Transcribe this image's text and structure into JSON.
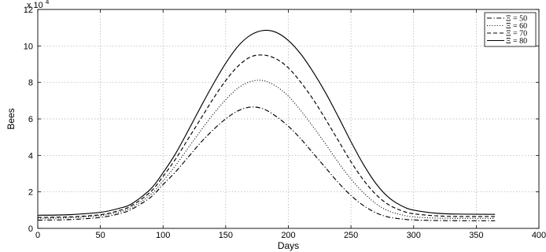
{
  "chart_data": {
    "type": "line",
    "title": "",
    "xlabel": "Days",
    "ylabel": "Bees",
    "y_multiplier": "x 10^4",
    "y_exponent_base": "x 10",
    "y_exponent": "4",
    "xlim": [
      0,
      400
    ],
    "ylim": [
      0,
      12
    ],
    "xticks": [
      0,
      50,
      100,
      150,
      200,
      250,
      300,
      350,
      400
    ],
    "yticks": [
      0,
      2,
      4,
      6,
      8,
      10,
      12
    ],
    "grid": true,
    "legend_position": "top-right",
    "series": [
      {
        "name": "Ξ = 50",
        "legend_symbol": "Ξ",
        "legend_value": "= 50",
        "line_style": "dashdot",
        "x": [
          0,
          25,
          50,
          65,
          75,
          90,
          100,
          110,
          120,
          130,
          140,
          150,
          160,
          170,
          180,
          190,
          200,
          210,
          220,
          230,
          240,
          250,
          260,
          270,
          280,
          290,
          300,
          320,
          340,
          365
        ],
        "y": [
          0.45,
          0.48,
          0.6,
          0.8,
          1.05,
          1.7,
          2.4,
          3.1,
          3.9,
          4.7,
          5.4,
          6.0,
          6.45,
          6.65,
          6.55,
          6.15,
          5.6,
          4.9,
          4.1,
          3.3,
          2.5,
          1.8,
          1.25,
          0.85,
          0.62,
          0.52,
          0.46,
          0.43,
          0.42,
          0.42
        ]
      },
      {
        "name": "Ξ = 60",
        "legend_symbol": "Ξ",
        "legend_value": "= 60",
        "line_style": "dotted",
        "x": [
          0,
          25,
          50,
          65,
          75,
          90,
          100,
          110,
          120,
          130,
          140,
          150,
          160,
          170,
          180,
          190,
          200,
          210,
          220,
          230,
          240,
          250,
          260,
          270,
          280,
          290,
          300,
          320,
          340,
          365
        ],
        "y": [
          0.55,
          0.58,
          0.7,
          0.9,
          1.15,
          1.85,
          2.6,
          3.45,
          4.4,
          5.35,
          6.25,
          7.05,
          7.7,
          8.05,
          8.1,
          7.8,
          7.25,
          6.45,
          5.55,
          4.6,
          3.6,
          2.7,
          1.95,
          1.35,
          0.95,
          0.75,
          0.63,
          0.56,
          0.55,
          0.55
        ]
      },
      {
        "name": "Ξ = 70",
        "legend_symbol": "Ξ",
        "legend_value": "= 70",
        "line_style": "dashed",
        "x": [
          0,
          25,
          50,
          65,
          75,
          90,
          100,
          110,
          120,
          130,
          140,
          150,
          160,
          170,
          180,
          190,
          200,
          210,
          220,
          230,
          240,
          250,
          260,
          270,
          280,
          290,
          300,
          320,
          340,
          365
        ],
        "y": [
          0.6,
          0.63,
          0.75,
          0.98,
          1.25,
          2.0,
          2.85,
          3.8,
          4.9,
          6.0,
          7.1,
          8.1,
          8.9,
          9.4,
          9.5,
          9.3,
          8.8,
          8.0,
          7.05,
          5.95,
          4.8,
          3.65,
          2.65,
          1.85,
          1.3,
          0.98,
          0.8,
          0.68,
          0.65,
          0.65
        ]
      },
      {
        "name": "Ξ = 80",
        "legend_symbol": "Ξ",
        "legend_value": "= 80",
        "line_style": "solid",
        "x": [
          0,
          25,
          50,
          65,
          75,
          90,
          100,
          110,
          120,
          130,
          140,
          150,
          160,
          170,
          180,
          190,
          200,
          210,
          220,
          230,
          240,
          250,
          260,
          270,
          280,
          290,
          300,
          320,
          340,
          365
        ],
        "y": [
          0.72,
          0.75,
          0.88,
          1.1,
          1.35,
          2.15,
          3.05,
          4.1,
          5.35,
          6.65,
          7.9,
          9.05,
          10.0,
          10.6,
          10.85,
          10.75,
          10.3,
          9.55,
          8.55,
          7.4,
          6.1,
          4.75,
          3.5,
          2.45,
          1.7,
          1.25,
          1.0,
          0.82,
          0.78,
          0.77
        ]
      }
    ]
  }
}
